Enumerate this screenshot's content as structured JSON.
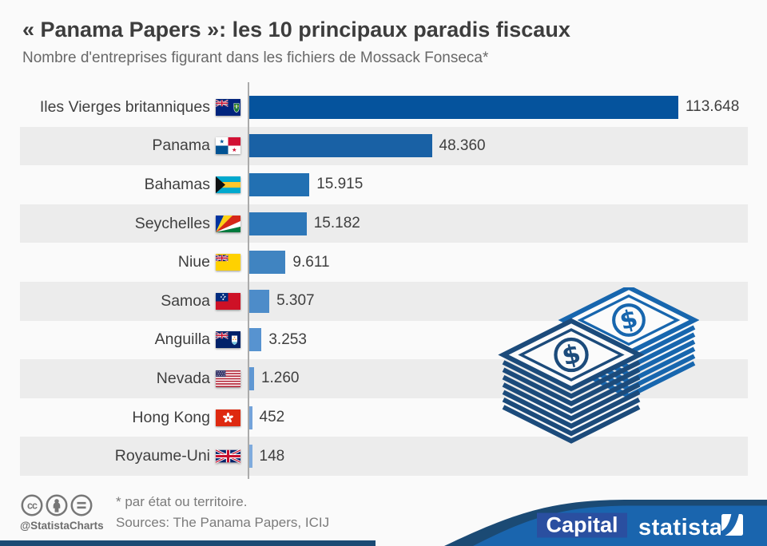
{
  "header": {
    "title": "« Panama Papers »: les 10 principaux paradis fiscaux",
    "subtitle": "Nombre d'entreprises figurant dans les fichiers de Mossack Fonseca*"
  },
  "chart_data": {
    "type": "bar",
    "orientation": "horizontal",
    "title": "« Panama Papers »: les 10 principaux paradis fiscaux",
    "subtitle": "Nombre d'entreprises figurant dans les fichiers de Mossack Fonseca*",
    "xlabel": "",
    "ylabel": "",
    "xlim": [
      0,
      113648
    ],
    "grid": false,
    "legend": false,
    "categories": [
      "Iles Vierges britanniques",
      "Panama",
      "Bahamas",
      "Seychelles",
      "Niue",
      "Samoa",
      "Anguilla",
      "Nevada",
      "Hong Kong",
      "Royaume-Uni"
    ],
    "values": [
      113648,
      48360,
      15915,
      15182,
      9611,
      5307,
      3253,
      1260,
      452,
      148
    ],
    "value_labels": [
      "113.648",
      "48.360",
      "15.915",
      "15.182",
      "9.611",
      "5.307",
      "3.253",
      "1.260",
      "452",
      "148"
    ],
    "flag_icons": [
      "british-virgin-islands-flag-icon",
      "panama-flag-icon",
      "bahamas-flag-icon",
      "seychelles-flag-icon",
      "niue-flag-icon",
      "samoa-flag-icon",
      "anguilla-flag-icon",
      "usa-flag-icon",
      "hong-kong-flag-icon",
      "united-kingdom-flag-icon"
    ],
    "bar_colors": [
      "#05539d",
      "#1961a5",
      "#2270b2",
      "#2d77b8",
      "#4084c1",
      "#4d8cc9",
      "#5793d0",
      "#5f97d3",
      "#74a3da",
      "#7fabdd"
    ]
  },
  "footer": {
    "license_icons": [
      "cc-icon",
      "attribution-icon",
      "equals-icon"
    ],
    "handle": "@StatistaCharts",
    "footnote": "* par état ou territoire.",
    "sources": "Sources: The Panama Papers, ICIJ",
    "brand_capital": "Capital",
    "brand_statista": "statista"
  },
  "colors": {
    "background": "#fafafa",
    "row_stripe": "#ececec",
    "banner_blue": "#1a65ae",
    "banner_navy": "#1b4a74",
    "capital_logo_blue": "#2a4fa0",
    "money_front": "#1c4b7b",
    "money_back": "#1766ae"
  }
}
